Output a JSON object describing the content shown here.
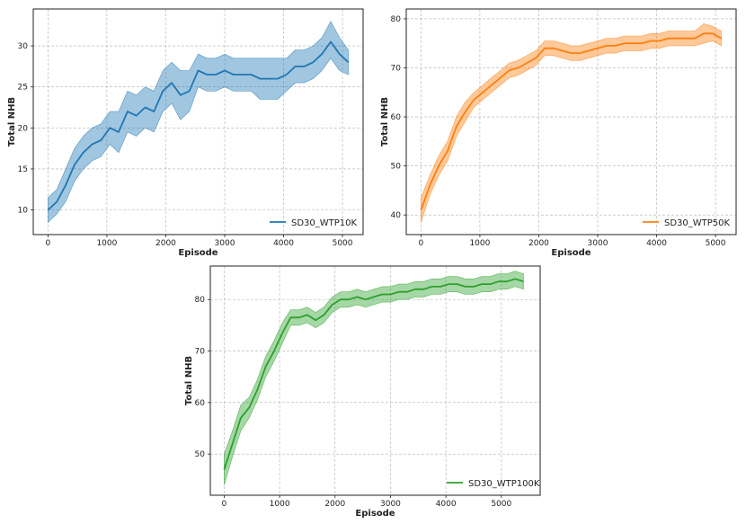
{
  "chart_data": [
    {
      "type": "line",
      "xlabel": "Episode",
      "ylabel": "Total NHB",
      "xlim": [
        -250,
        5350
      ],
      "ylim": [
        7,
        34.5
      ],
      "xticks": [
        0,
        1000,
        2000,
        3000,
        4000,
        5000
      ],
      "yticks": [
        10,
        15,
        20,
        25,
        30
      ],
      "grid": true,
      "legend_position": "lower-right",
      "color": "#1f77b4",
      "series": [
        {
          "name": "SD30_WTP10K",
          "x": [
            0,
            150,
            300,
            450,
            600,
            750,
            900,
            1050,
            1200,
            1350,
            1500,
            1650,
            1800,
            1950,
            2100,
            2250,
            2400,
            2550,
            2700,
            2850,
            3000,
            3150,
            3300,
            3450,
            3600,
            3750,
            3900,
            4050,
            4200,
            4350,
            4500,
            4650,
            4800,
            4950,
            5100
          ],
          "mean": [
            10,
            11,
            13,
            15.5,
            17,
            18,
            18.5,
            20,
            19.5,
            22,
            21.5,
            22.5,
            22,
            24.5,
            25.5,
            24,
            24.5,
            27,
            26.5,
            26.5,
            27,
            26.5,
            26.5,
            26.5,
            26,
            26,
            26,
            26.5,
            27.5,
            27.5,
            28,
            29,
            30.5,
            29,
            28
          ],
          "lower": [
            8.5,
            9.5,
            11,
            13.5,
            15,
            16,
            16.5,
            18,
            17,
            19.5,
            19,
            20,
            19.5,
            22,
            23,
            21,
            22,
            25,
            24.5,
            24.5,
            25,
            24.5,
            24.5,
            24.5,
            23.5,
            23.5,
            23.5,
            24.5,
            25.5,
            25.5,
            26,
            27,
            28.5,
            27,
            26.5
          ],
          "upper": [
            11.5,
            12.5,
            15,
            17.5,
            19,
            20,
            20.5,
            22,
            22,
            24.5,
            24,
            25,
            24.5,
            27,
            28,
            27,
            27,
            29,
            28.5,
            28.5,
            29,
            28.5,
            28.5,
            28.5,
            28.5,
            28.5,
            28.5,
            28.5,
            29.5,
            29.5,
            30,
            31,
            33,
            31,
            29.5
          ]
        }
      ]
    },
    {
      "type": "line",
      "xlabel": "Episode",
      "ylabel": "Total NHB",
      "xlim": [
        -250,
        5350
      ],
      "ylim": [
        36,
        82
      ],
      "xticks": [
        0,
        1000,
        2000,
        3000,
        4000,
        5000
      ],
      "yticks": [
        40,
        50,
        60,
        70,
        80
      ],
      "grid": true,
      "legend_position": "lower-right",
      "color": "#ff7f0e",
      "series": [
        {
          "name": "SD30_WTP50K",
          "x": [
            0,
            150,
            300,
            450,
            600,
            750,
            900,
            1050,
            1200,
            1350,
            1500,
            1650,
            1800,
            1950,
            2100,
            2250,
            2400,
            2550,
            2700,
            2850,
            3000,
            3150,
            3300,
            3450,
            3600,
            3750,
            3900,
            4050,
            4200,
            4350,
            4500,
            4650,
            4800,
            4950,
            5100
          ],
          "mean": [
            41,
            46,
            50,
            53,
            58,
            61,
            63.5,
            65,
            66.5,
            68,
            69.5,
            70,
            71,
            72,
            74,
            74,
            73.5,
            73,
            73,
            73.5,
            74,
            74.5,
            74.5,
            75,
            75,
            75,
            75.5,
            75.5,
            76,
            76,
            76,
            76,
            77,
            77,
            76
          ],
          "lower": [
            38.5,
            44,
            48,
            51,
            56,
            59,
            62,
            63.5,
            65,
            66.5,
            68,
            68.5,
            69.5,
            70.5,
            72.5,
            72.5,
            72,
            71.5,
            71.5,
            72,
            72.5,
            73,
            73,
            73.5,
            73.5,
            73.5,
            74,
            74,
            74.5,
            74.5,
            74.5,
            74.5,
            75,
            75.5,
            74.5
          ],
          "upper": [
            43.5,
            48,
            52,
            55,
            60,
            63,
            65,
            66.5,
            68,
            69.5,
            71,
            71.5,
            72.5,
            73.5,
            75.5,
            75.5,
            75,
            74.5,
            74.5,
            75,
            75.5,
            76,
            76,
            76.5,
            76.5,
            76.5,
            77,
            77,
            77.5,
            77.5,
            77.5,
            77.5,
            79,
            78.5,
            77.5
          ]
        }
      ]
    },
    {
      "type": "line",
      "xlabel": "Episode",
      "ylabel": "Total NHB",
      "xlim": [
        -250,
        5700
      ],
      "ylim": [
        42,
        86.5
      ],
      "xticks": [
        0,
        1000,
        2000,
        3000,
        4000,
        5000
      ],
      "yticks": [
        50,
        60,
        70,
        80
      ],
      "grid": true,
      "legend_position": "lower-right",
      "color": "#2ca02c",
      "series": [
        {
          "name": "SD30_WTP100K",
          "x": [
            0,
            150,
            300,
            450,
            600,
            750,
            900,
            1050,
            1200,
            1350,
            1500,
            1650,
            1800,
            1950,
            2100,
            2250,
            2400,
            2550,
            2700,
            2850,
            3000,
            3150,
            3300,
            3450,
            3600,
            3750,
            3900,
            4050,
            4200,
            4350,
            4500,
            4650,
            4800,
            4950,
            5100,
            5250,
            5400
          ],
          "mean": [
            47,
            52,
            57,
            59,
            62.5,
            67,
            70,
            73.5,
            76.5,
            76.5,
            77,
            76,
            77,
            79,
            80,
            80,
            80.5,
            80,
            80.5,
            81,
            81,
            81.5,
            81.5,
            82,
            82,
            82.5,
            82.5,
            83,
            83,
            82.5,
            82.5,
            83,
            83,
            83.5,
            83.5,
            84,
            83.5
          ],
          "lower": [
            44,
            49.5,
            54.5,
            57,
            60.5,
            65,
            68,
            71.5,
            75,
            75,
            75.5,
            74.5,
            75.5,
            77.5,
            78.5,
            78.5,
            79,
            78.5,
            79,
            79.5,
            79.5,
            80,
            80,
            80.5,
            80.5,
            81,
            81,
            81.5,
            81.5,
            81,
            81,
            81.5,
            81.5,
            82,
            82,
            82.5,
            82
          ],
          "upper": [
            50,
            54.5,
            59.5,
            61,
            64.5,
            69,
            72,
            75.5,
            78,
            78,
            78.5,
            77.5,
            78.5,
            80.5,
            81.5,
            81.5,
            82,
            81.5,
            82,
            82.5,
            82.5,
            83,
            83,
            83.5,
            83.5,
            84,
            84,
            84.5,
            84.5,
            84,
            84,
            84.5,
            84.5,
            85,
            85,
            85.5,
            85
          ]
        }
      ]
    }
  ]
}
